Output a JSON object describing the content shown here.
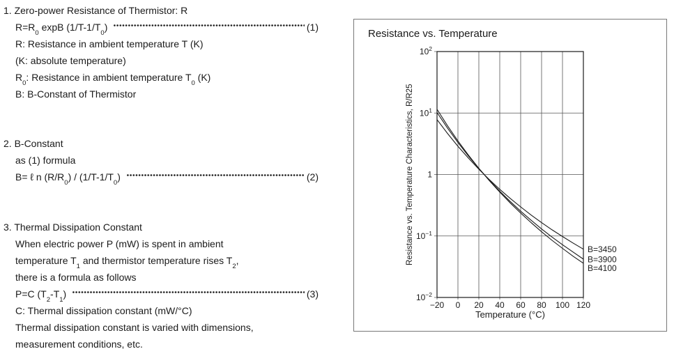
{
  "page": {
    "background": "#ffffff",
    "text_color": "#1a1a1a"
  },
  "sections": [
    {
      "heading": "1. Zero-power Resistance of Thermistor: R",
      "lines": [
        {
          "text": "R=R~0~ expB (1/T-1/T~0~)",
          "eqnum": "(1)"
        },
        {
          "text": "R: Resistance in ambient temperature T (K)",
          "eqnum": ""
        },
        {
          "text": "(K: absolute temperature)",
          "eqnum": ""
        },
        {
          "text": "R~0~: Resistance in ambient temperature T~0~ (K)",
          "eqnum": ""
        },
        {
          "text": "B: B-Constant of Thermistor",
          "eqnum": ""
        }
      ]
    },
    {
      "heading": "2. B-Constant",
      "lines": [
        {
          "text": "as (1) formula",
          "eqnum": ""
        },
        {
          "text": "B= ℓ n (R/R~0~) / (1/T-1/T~0~)",
          "eqnum": "(2)"
        }
      ]
    },
    {
      "heading": "3. Thermal Dissipation Constant",
      "lines": [
        {
          "text": "When electric power P (mW) is spent in ambient",
          "eqnum": ""
        },
        {
          "text": "temperature T~1~ and thermistor temperature rises T~2~,",
          "eqnum": ""
        },
        {
          "text": "there is a formula as follows",
          "eqnum": ""
        },
        {
          "text": "P=C (T~2~-T~1~)",
          "eqnum": "(3)"
        },
        {
          "text": "C: Thermal dissipation constant (mW/°C)",
          "eqnum": ""
        },
        {
          "text": "Thermal dissipation constant is varied with dimensions,",
          "eqnum": ""
        },
        {
          "text": "measurement conditions, etc.",
          "eqnum": ""
        }
      ]
    }
  ],
  "chart_data": {
    "type": "line",
    "title": "Resistance vs. Temperature",
    "xlabel": "Temperature (°C)",
    "ylabel": "Resistance vs. Temperature Characteristics, R/R25",
    "x_axis": {
      "min": -20,
      "max": 120,
      "ticks": [
        -20,
        0,
        20,
        40,
        60,
        80,
        100,
        120
      ]
    },
    "y_axis": {
      "scale": "log",
      "min": 0.01,
      "max": 100,
      "tick_values": [
        100,
        10,
        1,
        0.1,
        0.01
      ],
      "tick_labels": [
        "10^2",
        "10^1",
        "1",
        "10^−1",
        "10^−2"
      ]
    },
    "grid": true,
    "legend_position": "right-of-curve-ends",
    "x": [
      -20,
      -10,
      0,
      10,
      20,
      30,
      40,
      50,
      60,
      70,
      80,
      90,
      100,
      110,
      120
    ],
    "series": [
      {
        "name": "B=3450",
        "values": [
          7.82,
          4.66,
          2.88,
          1.85,
          1.22,
          0.826,
          0.574,
          0.409,
          0.297,
          0.219,
          0.165,
          0.126,
          0.098,
          0.077,
          0.061
        ]
      },
      {
        "name": "B=3900",
        "values": [
          10.2,
          5.7,
          3.31,
          2.0,
          1.25,
          0.806,
          0.534,
          0.364,
          0.253,
          0.18,
          0.13,
          0.096,
          0.072,
          0.055,
          0.042
        ]
      },
      {
        "name": "B=4100",
        "values": [
          11.5,
          6.23,
          3.52,
          2.07,
          1.26,
          0.797,
          0.518,
          0.345,
          0.236,
          0.165,
          0.117,
          0.085,
          0.063,
          0.047,
          0.036
        ]
      }
    ],
    "colors": {
      "curve": "#1a1a1a",
      "grid": "#555555",
      "plot_border": "#1a1a1a",
      "panel_border": "#787878"
    }
  }
}
